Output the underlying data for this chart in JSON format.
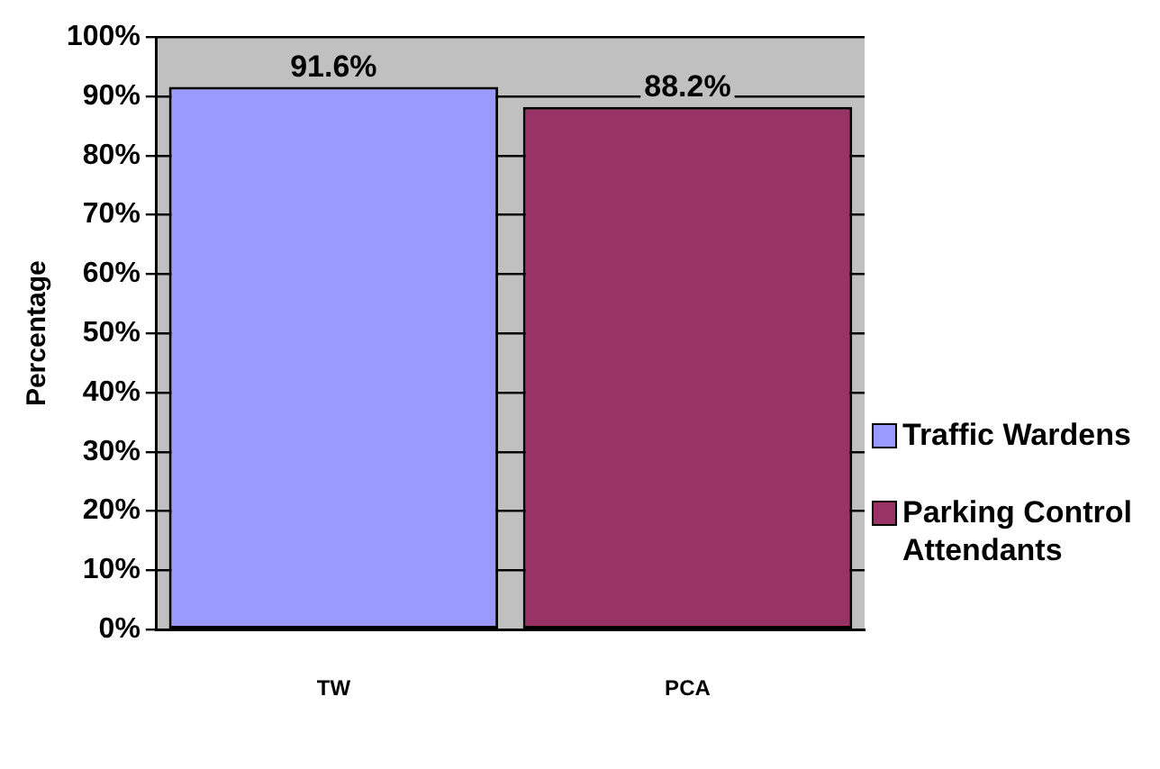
{
  "chart_data": {
    "type": "bar",
    "ylabel": "Percentage",
    "categories": [
      "TW",
      "PCA"
    ],
    "series": [
      {
        "name": "Traffic Wardens",
        "color": "#9999ff",
        "values": [
          91.6,
          null
        ],
        "value_labels": [
          "91.6%",
          null
        ]
      },
      {
        "name": "Parking Control Attendants",
        "color": "#993366",
        "values": [
          null,
          88.2
        ],
        "value_labels": [
          null,
          "88.2%"
        ]
      }
    ],
    "ylim": [
      0,
      100
    ],
    "yticks": [
      {
        "value": 0,
        "label": "0%"
      },
      {
        "value": 10,
        "label": "10%"
      },
      {
        "value": 20,
        "label": "20%"
      },
      {
        "value": 30,
        "label": "30%"
      },
      {
        "value": 40,
        "label": "40%"
      },
      {
        "value": 50,
        "label": "50%"
      },
      {
        "value": 60,
        "label": "60%"
      },
      {
        "value": 70,
        "label": "70%"
      },
      {
        "value": 80,
        "label": "80%"
      },
      {
        "value": 90,
        "label": "90%"
      },
      {
        "value": 100,
        "label": "100%"
      }
    ],
    "grid": "y",
    "legend": "right"
  }
}
